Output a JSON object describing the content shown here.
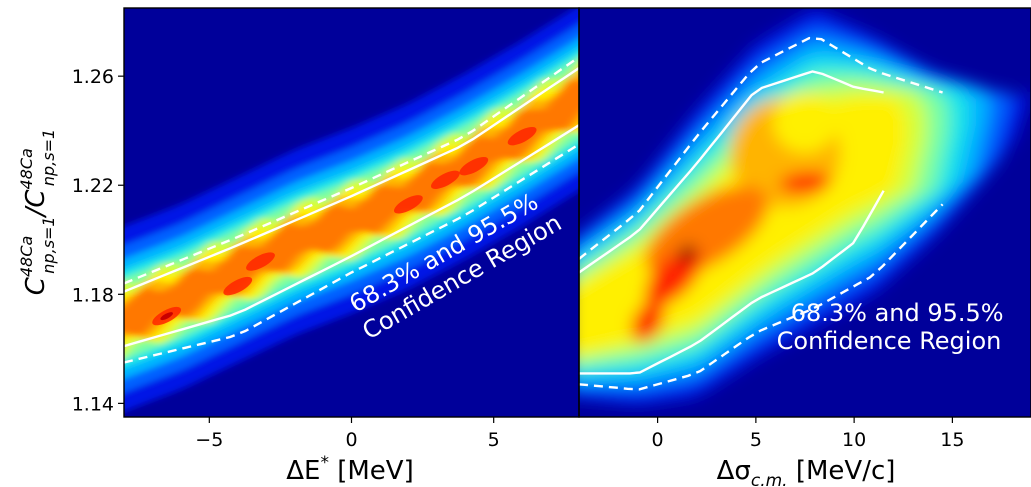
{
  "figure": {
    "ylabel_main": "C",
    "ylabel_num_sup": "48Ca",
    "ylabel_num_sub": "np,s=1",
    "ylabel_slash": "/C",
    "ylabel_den_sup": "48Ca",
    "ylabel_den_sub": "np,s=1",
    "colors": {
      "background": "#00009a",
      "levels": [
        "#0018e6",
        "#0060ff",
        "#00b4ff",
        "#1ee6e6",
        "#7cffa0",
        "#d2ff3c",
        "#fff000",
        "#ffb400",
        "#ff7800",
        "#ff2400",
        "#c80000",
        "#6e0000"
      ],
      "contour_lines": "#ffffff"
    }
  },
  "chart_data": [
    {
      "type": "contour",
      "panel": "left",
      "xlabel_pre": "ΔE",
      "xlabel_sup": "*",
      "xlabel_post": " [MeV]",
      "xlim": [
        -8,
        8
      ],
      "ylim": [
        1.135,
        1.285
      ],
      "xticks": [
        -5,
        0,
        5
      ],
      "xtick_labels": [
        "−5",
        "0",
        "5"
      ],
      "yticks": [
        1.14,
        1.18,
        1.22,
        1.26
      ],
      "ytick_labels": [
        "1.14",
        "1.18",
        "1.22",
        "1.26"
      ],
      "annotation": [
        "68.3% and 95.5%",
        "Confidence Region"
      ],
      "ridge": {
        "x": [
          -8,
          -6,
          -4,
          -2,
          0,
          2,
          4,
          6,
          8
        ],
        "y": [
          1.171,
          1.179,
          1.189,
          1.199,
          1.207,
          1.216,
          1.227,
          1.239,
          1.252
        ]
      },
      "hotspots": [
        {
          "x": -6.5,
          "y": 1.172
        },
        {
          "x": -4,
          "y": 1.183
        },
        {
          "x": -3.2,
          "y": 1.192
        },
        {
          "x": 2,
          "y": 1.213
        },
        {
          "x": 3.3,
          "y": 1.222
        },
        {
          "x": 4.3,
          "y": 1.227
        },
        {
          "x": 6,
          "y": 1.238
        }
      ],
      "contour_68_3": {
        "x": [
          -8,
          -4,
          0,
          4,
          8
        ],
        "y_upper": [
          1.181,
          1.198,
          1.216,
          1.235,
          1.263
        ],
        "y_lower": [
          1.161,
          1.173,
          1.194,
          1.216,
          1.242
        ]
      },
      "contour_95_5": {
        "x": [
          -8,
          -4,
          0,
          4,
          8
        ],
        "y_upper": [
          1.184,
          1.201,
          1.219,
          1.238,
          1.267
        ],
        "y_lower": [
          1.155,
          1.165,
          1.188,
          1.209,
          1.235
        ]
      }
    },
    {
      "type": "contour",
      "panel": "right",
      "xlabel_pre": "Δσ",
      "xlabel_sub": "c.m.",
      "xlabel_post": " [MeV/c]",
      "xlim": [
        -4,
        19
      ],
      "ylim": [
        1.135,
        1.285
      ],
      "xticks": [
        0,
        5,
        10,
        15
      ],
      "xtick_labels": [
        "0",
        "5",
        "10",
        "15"
      ],
      "annotation": [
        "68.3% and 95.5%",
        "Confidence Region"
      ],
      "peaks": [
        {
          "x": 1.5,
          "y": 1.194
        },
        {
          "x": 0,
          "y": 1.172
        },
        {
          "x": 0.3,
          "y": 1.187
        },
        {
          "x": 8.2,
          "y": 1.222
        },
        {
          "x": 5.5,
          "y": 1.213
        }
      ],
      "contour_68_3": {
        "x": [
          -4,
          -1,
          2,
          5,
          8,
          10,
          11.5
        ],
        "y_upper": [
          1.188,
          1.203,
          1.228,
          1.255,
          1.262,
          1.256,
          1.254
        ],
        "y_lower": [
          1.151,
          1.151,
          1.162,
          1.178,
          1.188,
          1.199,
          1.218
        ]
      },
      "contour_95_5": {
        "x": [
          -4,
          -1,
          2,
          5,
          8,
          11,
          14.5
        ],
        "y_upper": [
          1.193,
          1.21,
          1.238,
          1.264,
          1.275,
          1.262,
          1.254
        ],
        "y_lower": [
          1.147,
          1.145,
          1.151,
          1.166,
          1.175,
          1.187,
          1.213
        ]
      }
    }
  ]
}
